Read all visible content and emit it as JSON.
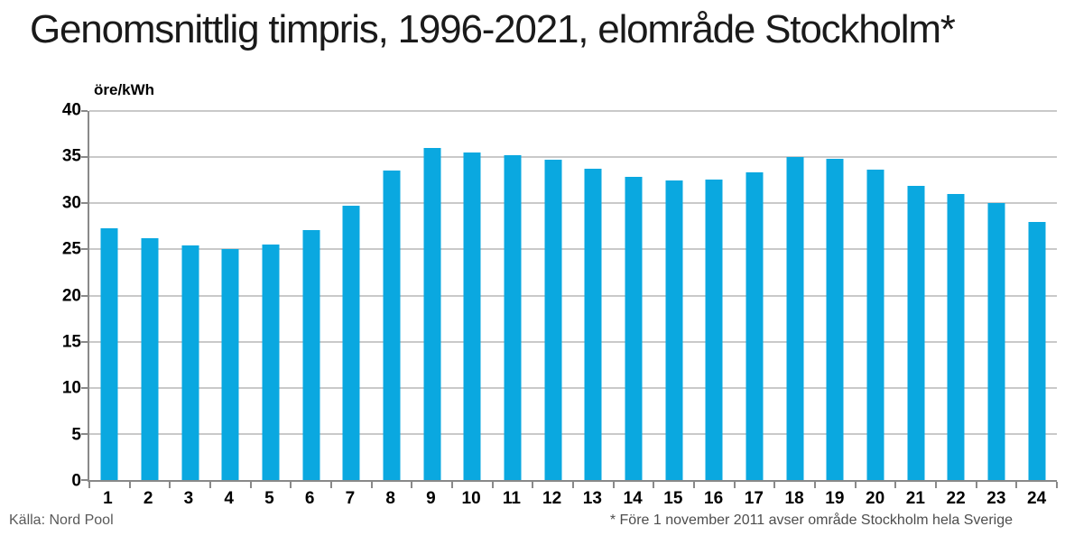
{
  "chart_data": {
    "type": "bar",
    "title": "Genomsnittlig timpris, 1996-2021, elområde Stockholm*",
    "ylabel": "öre/kWh",
    "xlabel": "",
    "categories": [
      "1",
      "2",
      "3",
      "4",
      "5",
      "6",
      "7",
      "8",
      "9",
      "10",
      "11",
      "12",
      "13",
      "14",
      "15",
      "16",
      "17",
      "18",
      "19",
      "20",
      "21",
      "22",
      "23",
      "24"
    ],
    "values": [
      27.3,
      26.2,
      25.4,
      25.0,
      25.5,
      27.1,
      29.7,
      33.5,
      36.0,
      35.5,
      35.2,
      34.7,
      33.7,
      32.9,
      32.5,
      32.6,
      33.4,
      35.0,
      34.8,
      33.6,
      31.9,
      31.0,
      30.0,
      28.0
    ],
    "ylim": [
      0,
      40
    ],
    "yticks": [
      0,
      5,
      10,
      15,
      20,
      25,
      30,
      35,
      40
    ],
    "grid": true,
    "legend": "none",
    "bar_color": "#0aa8e0",
    "gridline_color": "#c9c9c9",
    "axis_color": "#898989"
  },
  "footer": {
    "source": "Källa: Nord Pool",
    "note": "* Före 1 november 2011 avser område Stockholm hela Sverige"
  }
}
